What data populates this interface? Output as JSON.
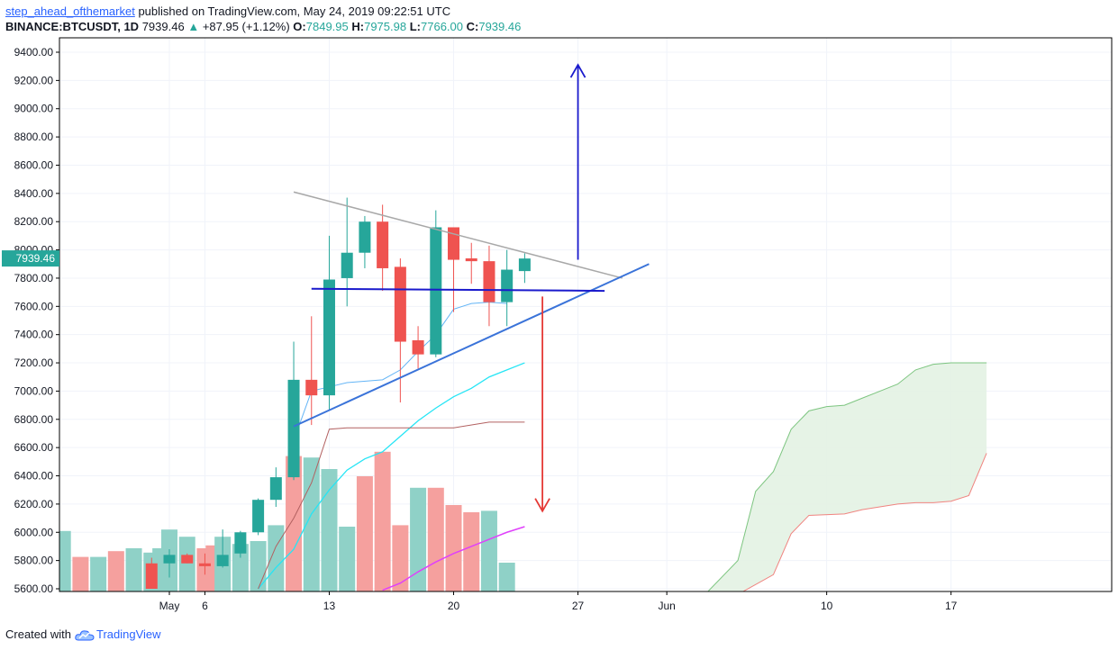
{
  "header": {
    "author": "step_ahead_ofthemarket",
    "published": "published on TradingView.com, May 24, 2019 09:22:51 UTC",
    "symbol": "BINANCE:BTCUSDT, 1D",
    "last": "7939.46",
    "change": "+87.95 (+1.12%)",
    "o_label": "O:",
    "o_value": "7849.95",
    "h_label": "H:",
    "h_value": "7975.98",
    "l_label": "L:",
    "l_value": "7766.00",
    "c_label": "C:",
    "c_value": "7939.46"
  },
  "footer": {
    "created_with": "Created with",
    "brand": "TradingView"
  },
  "colors": {
    "up": "#26a69a",
    "down": "#ef5350",
    "vol_up": "#8fd1c7",
    "vol_down": "#f5a09e",
    "price_tag": "#26a69a",
    "arrow_up": "#1a1acc",
    "arrow_down": "#e53935",
    "trend_upper": "#a8a8a8",
    "trend_lower": "#3a73d9",
    "horizontal": "#1a1acc",
    "cloud_fill": "#e3f2e3",
    "cloud_line_top": "#4caf50",
    "cloud_line_bottom": "#ef5350"
  },
  "chart_data": {
    "type": "candlestick",
    "price_axis": {
      "ticks": [
        "9400.00",
        "9200.00",
        "9000.00",
        "8800.00",
        "8600.00",
        "8400.00",
        "8200.00",
        "8000.00",
        "7800.00",
        "7600.00",
        "7400.00",
        "7200.00",
        "7000.00",
        "6800.00",
        "6600.00",
        "6400.00",
        "6200.00",
        "6000.00",
        "5800.00",
        "5600.00"
      ],
      "ylim": [
        5600,
        9400
      ],
      "last_price_tag": "7939.46"
    },
    "time_axis": {
      "labels": [
        {
          "text": "May",
          "day": 4
        },
        {
          "text": "6",
          "day": 6
        },
        {
          "text": "13",
          "day": 13
        },
        {
          "text": "20",
          "day": 20
        },
        {
          "text": "27",
          "day": 27
        },
        {
          "text": "Jun",
          "day": 32
        },
        {
          "text": "10",
          "day": 41
        },
        {
          "text": "17",
          "day": 48
        }
      ],
      "note": "day index: 1 = May 1"
    },
    "candles": [
      {
        "day": 3,
        "o": 5780,
        "h": 5820,
        "l": 5600,
        "c": 5600
      },
      {
        "day": 4,
        "o": 5780,
        "h": 5880,
        "l": 5680,
        "c": 5840
      },
      {
        "day": 5,
        "o": 5840,
        "h": 5850,
        "l": 5780,
        "c": 5780
      },
      {
        "day": 6,
        "o": 5780,
        "h": 5850,
        "l": 5700,
        "c": 5760
      },
      {
        "day": 7,
        "o": 5760,
        "h": 6020,
        "l": 5750,
        "c": 5840
      },
      {
        "day": 8,
        "o": 5850,
        "h": 6010,
        "l": 5820,
        "c": 6000
      },
      {
        "day": 9,
        "o": 6000,
        "h": 6240,
        "l": 5980,
        "c": 6230
      },
      {
        "day": 10,
        "o": 6230,
        "h": 6460,
        "l": 6180,
        "c": 6390
      },
      {
        "day": 11,
        "o": 6390,
        "h": 7350,
        "l": 6370,
        "c": 7080
      },
      {
        "day": 12,
        "o": 7080,
        "h": 7530,
        "l": 6760,
        "c": 6970
      },
      {
        "day": 13,
        "o": 6970,
        "h": 8100,
        "l": 6870,
        "c": 7790
      },
      {
        "day": 14,
        "o": 7800,
        "h": 8370,
        "l": 7600,
        "c": 7980
      },
      {
        "day": 15,
        "o": 7980,
        "h": 8240,
        "l": 7870,
        "c": 8200
      },
      {
        "day": 16,
        "o": 8200,
        "h": 8320,
        "l": 7710,
        "c": 7870
      },
      {
        "day": 17,
        "o": 7880,
        "h": 7940,
        "l": 6920,
        "c": 7350
      },
      {
        "day": 18,
        "o": 7360,
        "h": 7460,
        "l": 7160,
        "c": 7260
      },
      {
        "day": 19,
        "o": 7260,
        "h": 8280,
        "l": 7240,
        "c": 8160
      },
      {
        "day": 20,
        "o": 8160,
        "h": 8160,
        "l": 7560,
        "c": 7930
      },
      {
        "day": 21,
        "o": 7940,
        "h": 8050,
        "l": 7760,
        "c": 7920
      },
      {
        "day": 22,
        "o": 7920,
        "h": 8030,
        "l": 7460,
        "c": 7630
      },
      {
        "day": 23,
        "o": 7630,
        "h": 8000,
        "l": 7460,
        "c": 7860
      },
      {
        "day": 24,
        "o": 7850,
        "h": 7976,
        "l": 7766,
        "c": 7939
      }
    ],
    "volume": [
      {
        "day": -3,
        "v": 0.43,
        "up": false
      },
      {
        "day": -2,
        "v": 0.42,
        "up": true
      },
      {
        "day": -1,
        "v": 0.24,
        "up": false
      },
      {
        "day": 0,
        "v": 0.24,
        "up": true
      },
      {
        "day": 1,
        "v": 0.28,
        "up": false
      },
      {
        "day": 2,
        "v": 0.3,
        "up": true
      },
      {
        "day": 3,
        "v": 0.27,
        "up": true
      },
      {
        "day": 3.5,
        "v": 0.3,
        "up": true
      },
      {
        "day": 4,
        "v": 0.43,
        "up": true
      },
      {
        "day": 5,
        "v": 0.38,
        "up": true
      },
      {
        "day": 6,
        "v": 0.3,
        "up": false
      },
      {
        "day": 6.5,
        "v": 0.32,
        "up": false
      },
      {
        "day": 7,
        "v": 0.38,
        "up": true
      },
      {
        "day": 8,
        "v": 0.33,
        "up": true
      },
      {
        "day": 9,
        "v": 0.35,
        "up": true
      },
      {
        "day": 10,
        "v": 0.46,
        "up": true
      },
      {
        "day": 11,
        "v": 0.94,
        "up": false
      },
      {
        "day": 12,
        "v": 0.93,
        "up": true
      },
      {
        "day": 13,
        "v": 0.85,
        "up": true
      },
      {
        "day": 14,
        "v": 0.45,
        "up": true
      },
      {
        "day": 15,
        "v": 0.8,
        "up": false
      },
      {
        "day": 16,
        "v": 0.97,
        "up": false
      },
      {
        "day": 17,
        "v": 0.46,
        "up": false
      },
      {
        "day": 18,
        "v": 0.72,
        "up": true
      },
      {
        "day": 19,
        "v": 0.72,
        "up": false
      },
      {
        "day": 20,
        "v": 0.6,
        "up": false
      },
      {
        "day": 21,
        "v": 0.55,
        "up": false
      },
      {
        "day": 22,
        "v": 0.56,
        "up": true
      },
      {
        "day": 23,
        "v": 0.2,
        "up": true
      }
    ],
    "drawings": {
      "upper_trendline": [
        {
          "day": 11,
          "p": 8410
        },
        {
          "day": 29.5,
          "p": 7800
        }
      ],
      "lower_trendline": [
        {
          "day": 11,
          "p": 6750
        },
        {
          "day": 31,
          "p": 7900
        }
      ],
      "horizontal_line": [
        {
          "day": 12,
          "p": 7725
        },
        {
          "day": 28.5,
          "p": 7710
        }
      ],
      "arrow_up": [
        {
          "day": 27,
          "p": 7930
        },
        {
          "day": 27,
          "p": 9310
        }
      ],
      "arrow_down": [
        {
          "day": 25,
          "p": 7670
        },
        {
          "day": 25,
          "p": 6150
        }
      ]
    },
    "ichimoku_cloud": {
      "top": [
        [
          34,
          5540
        ],
        [
          36,
          5800
        ],
        [
          37,
          6290
        ],
        [
          38,
          6430
        ],
        [
          39,
          6730
        ],
        [
          40,
          6860
        ],
        [
          41,
          6890
        ],
        [
          42,
          6900
        ],
        [
          43,
          6950
        ],
        [
          44,
          7000
        ],
        [
          45,
          7050
        ],
        [
          46,
          7150
        ],
        [
          47,
          7190
        ],
        [
          48,
          7200
        ],
        [
          50,
          7200
        ]
      ],
      "bottom": [
        [
          36,
          5560
        ],
        [
          38,
          5700
        ],
        [
          39,
          5990
        ],
        [
          40,
          6120
        ],
        [
          42,
          6130
        ],
        [
          43,
          6160
        ],
        [
          44,
          6180
        ],
        [
          45,
          6200
        ],
        [
          46,
          6210
        ],
        [
          47,
          6210
        ],
        [
          48,
          6220
        ],
        [
          49,
          6260
        ],
        [
          50,
          6560
        ]
      ]
    },
    "indicator_lines": {
      "thin_blue": [
        [
          11,
          6650
        ],
        [
          12,
          7000
        ],
        [
          14,
          7060
        ],
        [
          16,
          7080
        ],
        [
          17,
          7150
        ],
        [
          18,
          7280
        ],
        [
          19,
          7400
        ],
        [
          20,
          7580
        ],
        [
          21,
          7620
        ],
        [
          22,
          7630
        ],
        [
          23,
          7620
        ]
      ],
      "cyan": [
        [
          9,
          5600
        ],
        [
          10,
          5750
        ],
        [
          11,
          5880
        ],
        [
          12,
          6130
        ],
        [
          13,
          6300
        ],
        [
          14,
          6440
        ],
        [
          15,
          6520
        ],
        [
          16,
          6570
        ],
        [
          17,
          6680
        ],
        [
          18,
          6790
        ],
        [
          19,
          6880
        ],
        [
          20,
          6960
        ],
        [
          21,
          7020
        ],
        [
          22,
          7100
        ],
        [
          23,
          7150
        ],
        [
          24,
          7200
        ]
      ],
      "dark_red": [
        [
          9,
          5600
        ],
        [
          10,
          5900
        ],
        [
          11,
          6100
        ],
        [
          12,
          6350
        ],
        [
          13,
          6730
        ],
        [
          14,
          6740
        ],
        [
          17,
          6740
        ],
        [
          20,
          6740
        ],
        [
          22,
          6780
        ],
        [
          24,
          6780
        ]
      ],
      "magenta_volume": [
        [
          16,
          5590
        ],
        [
          17,
          5640
        ],
        [
          18,
          5720
        ],
        [
          19,
          5790
        ],
        [
          20,
          5850
        ],
        [
          21,
          5900
        ],
        [
          22,
          5950
        ],
        [
          23,
          6000
        ],
        [
          24,
          6040
        ]
      ]
    }
  }
}
